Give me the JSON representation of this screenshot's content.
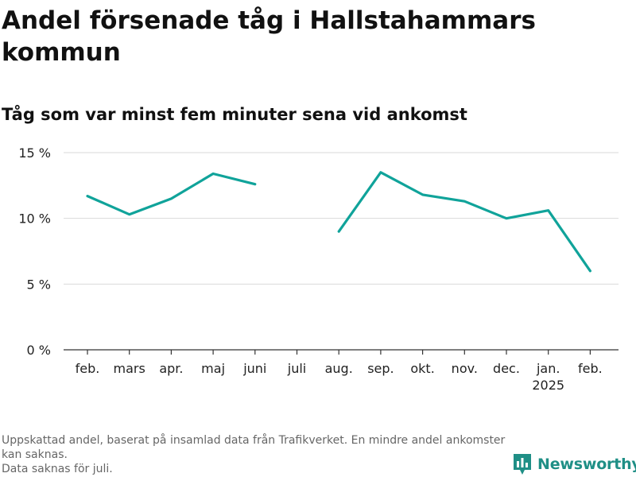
{
  "chart_data": {
    "type": "line",
    "title": "Andel försenade tåg i Hallstahammars kommun",
    "subtitle": "Tåg som var minst fem minuter sena vid ankomst",
    "categories": [
      "feb.",
      "mars",
      "apr.",
      "maj",
      "juni",
      "juli",
      "aug.",
      "sep.",
      "okt.",
      "nov.",
      "dec.",
      "jan.",
      "feb."
    ],
    "year_labels": [
      "",
      "",
      "",
      "",
      "",
      "",
      "",
      "",
      "",
      "",
      "",
      "2025",
      ""
    ],
    "series": [
      {
        "values": [
          11.7,
          10.3,
          11.5,
          13.4,
          12.6,
          null,
          9.0,
          13.5,
          11.8,
          11.3,
          10.0,
          10.6,
          6.0
        ]
      }
    ],
    "ylim": [
      0,
      15
    ],
    "yticks": [
      0,
      5,
      10,
      15
    ],
    "ytick_labels": [
      "0 %",
      "5 %",
      "10 %",
      "15 %"
    ],
    "grid": true,
    "line_color": "#10a39a"
  },
  "notes": [
    "Uppskattad andel, baserat på insamlad data från Trafikverket. En mindre andel ankomster kan saknas.",
    "Data saknas för juli."
  ],
  "brand": {
    "name": "Newsworthy",
    "icon": "bar-chart-logo-icon",
    "color": "#1f8f86"
  }
}
